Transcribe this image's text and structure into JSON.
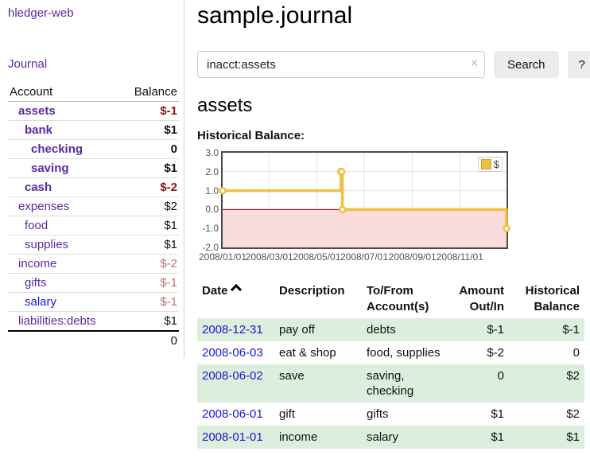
{
  "app": {
    "brand": "hledger-web"
  },
  "nav": {
    "journal": "Journal"
  },
  "colors": {
    "accent_purple": "#5c2a9d",
    "link_blue": "#1d15d6",
    "negative_strong": "#8f1515",
    "negative_muted": "#bb7272",
    "row_stripe_green": "#dcefdc",
    "series_yellow": "#edc240",
    "negative_region_pink": "#fbdcdc",
    "zero_line_red": "#8b0000",
    "button_gray": "#ececec"
  },
  "sidebar": {
    "header": {
      "account": "Account",
      "balance": "Balance"
    },
    "accounts": [
      {
        "name": "assets",
        "level": 0,
        "balance": "$-1",
        "bold": true,
        "blue": false
      },
      {
        "name": "bank",
        "level": 1,
        "balance": "$1",
        "bold": true,
        "blue": false
      },
      {
        "name": "checking",
        "level": 2,
        "balance": "0",
        "bold": true,
        "blue": false
      },
      {
        "name": "saving",
        "level": 2,
        "balance": "$1",
        "bold": true,
        "blue": false
      },
      {
        "name": "cash",
        "level": 1,
        "balance": "$-2",
        "bold": true,
        "blue": false
      },
      {
        "name": "expenses",
        "level": 0,
        "balance": "$2",
        "bold": false,
        "blue": false
      },
      {
        "name": "food",
        "level": 1,
        "balance": "$1",
        "bold": false,
        "blue": false
      },
      {
        "name": "supplies",
        "level": 1,
        "balance": "$1",
        "bold": false,
        "blue": false
      },
      {
        "name": "income",
        "level": 0,
        "balance": "$-2",
        "bold": false,
        "blue": false
      },
      {
        "name": "gifts",
        "level": 1,
        "balance": "$-1",
        "bold": false,
        "blue": false
      },
      {
        "name": "salary",
        "level": 1,
        "balance": "$-1",
        "bold": false,
        "blue": true
      },
      {
        "name": "liabilities:debts",
        "level": 0,
        "balance": "$1",
        "bold": false,
        "blue": false
      }
    ],
    "total": "0"
  },
  "header": {
    "title": "sample.journal"
  },
  "search": {
    "value": "inacct:assets",
    "clear_icon": "×",
    "button": "Search",
    "help_button": "?"
  },
  "account_page": {
    "title": "assets",
    "chart_label": "Historical Balance:"
  },
  "chart_data": {
    "type": "line",
    "title": "Historical Balance:",
    "step": true,
    "grid": true,
    "xlim": [
      "2008-01-01",
      "2008-12-31"
    ],
    "ylim": [
      -2,
      3
    ],
    "series": [
      {
        "name": "$",
        "color": "#edc240",
        "points": [
          [
            "2008-01-01",
            1
          ],
          [
            "2008-06-01",
            2
          ],
          [
            "2008-06-02",
            2
          ],
          [
            "2008-06-03",
            0
          ],
          [
            "2008-12-31",
            -1
          ]
        ]
      }
    ],
    "y_ticks": [
      {
        "value": 3,
        "label": "3.0"
      },
      {
        "value": 2,
        "label": "2.0"
      },
      {
        "value": 1,
        "label": "1.0"
      },
      {
        "value": 0,
        "label": "0.0"
      },
      {
        "value": -1,
        "label": "-1.0"
      },
      {
        "value": -2,
        "label": "-2.0"
      }
    ],
    "x_ticks": [
      {
        "date": "2008-01-01",
        "label": "2008/01/01"
      },
      {
        "date": "2008-03-01",
        "label": "2008/03/01"
      },
      {
        "date": "2008-05-01",
        "label": "2008/05/01"
      },
      {
        "date": "2008-07-01",
        "label": "2008/07/01"
      },
      {
        "date": "2008-09-01",
        "label": "2008/09/01"
      },
      {
        "date": "2008-11-01",
        "label": "2008/11/01"
      }
    ],
    "legend": {
      "label": "$",
      "position": "top-right"
    },
    "negative_region_color": "#fbdcdc",
    "zero_line_color": "#8b0000"
  },
  "register": {
    "columns": [
      "Date",
      "Description",
      "To/From Account(s)",
      "Amount Out/In",
      "Historical Balance"
    ],
    "rows": [
      {
        "date": "2008-12-31",
        "description": "pay off",
        "accounts": "debts",
        "amount": "$-1",
        "balance": "$-1"
      },
      {
        "date": "2008-06-03",
        "description": "eat & shop",
        "accounts": "food, supplies",
        "amount": "$-2",
        "balance": "0"
      },
      {
        "date": "2008-06-02",
        "description": "save",
        "accounts": "saving, checking",
        "amount": "0",
        "balance": "$2"
      },
      {
        "date": "2008-06-01",
        "description": "gift",
        "accounts": "gifts",
        "amount": "$1",
        "balance": "$2"
      },
      {
        "date": "2008-01-01",
        "description": "income",
        "accounts": "salary",
        "amount": "$1",
        "balance": "$1"
      }
    ]
  }
}
